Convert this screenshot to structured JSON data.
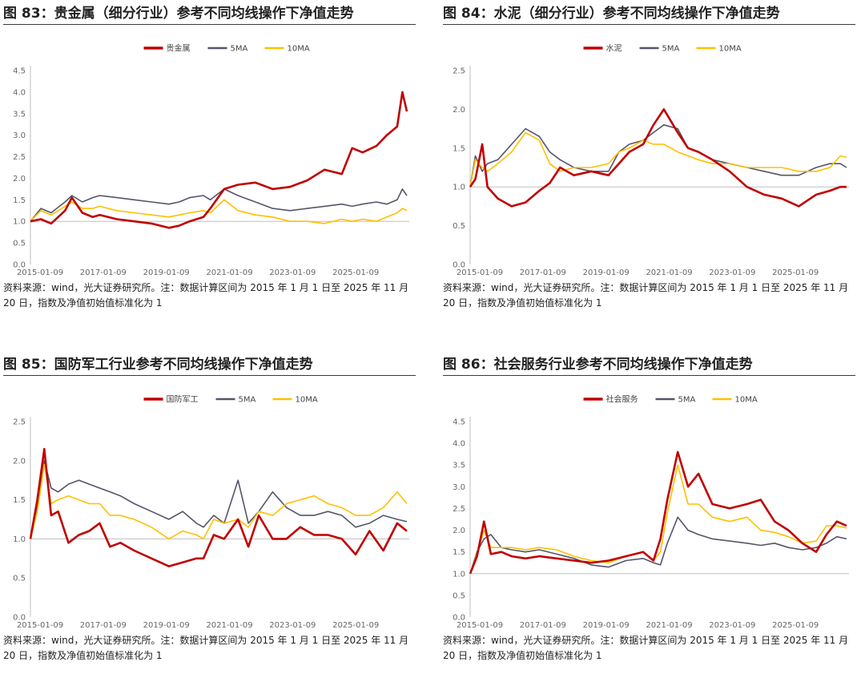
{
  "note": "资料来源：wind，光大证券研究所。注：数据计算区间为 2015 年 1 月 1 日至 2025 年 11 月 20 日，指数及净值初始值标准化为 1",
  "colors": {
    "index": "#c00000",
    "ma5": "#55556b",
    "ma10": "#ffc000"
  },
  "panels": [
    {
      "title": "图 83：贵金属（细分行业）参考不同均线操作下净值走势",
      "chart_data": {
        "type": "line",
        "x_ticks": [
          "2015-01-09",
          "2017-01-09",
          "2019-01-09",
          "2021-01-09",
          "2023-01-09",
          "2025-01-09"
        ],
        "ylim": [
          0,
          4.5
        ],
        "y_ticks": [
          "0.0",
          "0.5",
          "1.0",
          "1.5",
          "2.0",
          "2.5",
          "3.0",
          "3.5",
          "4.0",
          "4.5"
        ],
        "legend": "top-center",
        "x": [
          2015.0,
          2015.3,
          2015.6,
          2016.0,
          2016.2,
          2016.5,
          2016.8,
          2017.0,
          2017.5,
          2018.0,
          2018.5,
          2019.0,
          2019.3,
          2019.6,
          2020.0,
          2020.2,
          2020.6,
          2021.0,
          2021.5,
          2022.0,
          2022.5,
          2023.0,
          2023.5,
          2024.0,
          2024.3,
          2024.6,
          2025.0,
          2025.3,
          2025.6,
          2025.75,
          2025.88
        ],
        "series": [
          {
            "name": "贵金属",
            "values": [
              1.0,
              1.05,
              0.95,
              1.25,
              1.55,
              1.2,
              1.1,
              1.15,
              1.05,
              1.0,
              0.95,
              0.85,
              0.9,
              1.0,
              1.1,
              1.3,
              1.75,
              1.85,
              1.9,
              1.75,
              1.8,
              1.95,
              2.2,
              2.1,
              2.7,
              2.6,
              2.75,
              3.0,
              3.2,
              4.0,
              3.55
            ]
          },
          {
            "name": "5MA",
            "values": [
              1.0,
              1.3,
              1.2,
              1.45,
              1.6,
              1.45,
              1.55,
              1.6,
              1.55,
              1.5,
              1.45,
              1.4,
              1.45,
              1.55,
              1.6,
              1.5,
              1.75,
              1.6,
              1.45,
              1.3,
              1.25,
              1.3,
              1.35,
              1.4,
              1.35,
              1.4,
              1.45,
              1.4,
              1.5,
              1.75,
              1.6
            ]
          },
          {
            "name": "10MA",
            "values": [
              1.0,
              1.25,
              1.15,
              1.35,
              1.45,
              1.3,
              1.3,
              1.35,
              1.25,
              1.2,
              1.15,
              1.1,
              1.15,
              1.2,
              1.25,
              1.2,
              1.5,
              1.25,
              1.15,
              1.1,
              1.0,
              1.0,
              0.95,
              1.05,
              1.0,
              1.05,
              1.0,
              1.1,
              1.2,
              1.3,
              1.25
            ]
          }
        ]
      }
    },
    {
      "title": "图 84：水泥（细分行业）参考不同均线操作下净值走势",
      "chart_data": {
        "type": "line",
        "x_ticks": [
          "2015-01-09",
          "2017-01-09",
          "2019-01-09",
          "2021-01-09",
          "2023-01-09",
          "2025-01-09"
        ],
        "ylim": [
          0,
          2.5
        ],
        "y_ticks": [
          "0.0",
          "0.5",
          "1.0",
          "1.5",
          "2.0",
          "2.5"
        ],
        "legend": "top-center",
        "x": [
          2015.0,
          2015.15,
          2015.35,
          2015.5,
          2015.8,
          2016.2,
          2016.6,
          2017.0,
          2017.3,
          2017.6,
          2018.0,
          2018.5,
          2019.0,
          2019.3,
          2019.6,
          2020.0,
          2020.3,
          2020.6,
          2021.0,
          2021.3,
          2021.6,
          2022.0,
          2022.5,
          2023.0,
          2023.5,
          2024.0,
          2024.5,
          2025.0,
          2025.4,
          2025.7,
          2025.88
        ],
        "series": [
          {
            "name": "水泥",
            "values": [
              1.0,
              1.1,
              1.55,
              1.0,
              0.85,
              0.75,
              0.8,
              0.95,
              1.05,
              1.25,
              1.15,
              1.2,
              1.15,
              1.3,
              1.45,
              1.55,
              1.8,
              2.0,
              1.7,
              1.5,
              1.45,
              1.35,
              1.2,
              1.0,
              0.9,
              0.85,
              0.75,
              0.9,
              0.95,
              1.0,
              1.0
            ]
          },
          {
            "name": "5MA",
            "values": [
              1.0,
              1.4,
              1.2,
              1.3,
              1.35,
              1.55,
              1.75,
              1.65,
              1.45,
              1.35,
              1.25,
              1.2,
              1.2,
              1.45,
              1.55,
              1.6,
              1.7,
              1.8,
              1.75,
              1.5,
              1.45,
              1.35,
              1.3,
              1.25,
              1.2,
              1.15,
              1.15,
              1.25,
              1.3,
              1.3,
              1.25
            ]
          },
          {
            "name": "10MA",
            "values": [
              1.0,
              1.35,
              1.25,
              1.2,
              1.3,
              1.45,
              1.7,
              1.6,
              1.3,
              1.2,
              1.25,
              1.25,
              1.3,
              1.45,
              1.5,
              1.6,
              1.55,
              1.55,
              1.45,
              1.4,
              1.35,
              1.3,
              1.3,
              1.25,
              1.25,
              1.25,
              1.2,
              1.2,
              1.25,
              1.4,
              1.38
            ]
          }
        ]
      }
    },
    {
      "title": "图 85：国防军工行业参考不同均线操作下净值走势",
      "chart_data": {
        "type": "line",
        "x_ticks": [
          "2015-01-09",
          "2017-01-09",
          "2019-01-09",
          "2021-01-09",
          "2023-01-09",
          "2025-01-09"
        ],
        "ylim": [
          0,
          2.5
        ],
        "y_ticks": [
          "0.0",
          "0.5",
          "1.0",
          "1.5",
          "2.0",
          "2.5"
        ],
        "legend": "top-center",
        "x": [
          2015.0,
          2015.2,
          2015.4,
          2015.6,
          2015.8,
          2016.1,
          2016.4,
          2016.7,
          2017.0,
          2017.3,
          2017.6,
          2018.0,
          2018.5,
          2019.0,
          2019.4,
          2019.8,
          2020.0,
          2020.3,
          2020.6,
          2021.0,
          2021.3,
          2021.6,
          2022.0,
          2022.4,
          2022.8,
          2023.2,
          2023.6,
          2024.0,
          2024.4,
          2024.8,
          2025.2,
          2025.6,
          2025.88
        ],
        "series": [
          {
            "name": "国防军工",
            "values": [
              1.0,
              1.5,
              2.15,
              1.3,
              1.35,
              0.95,
              1.05,
              1.1,
              1.2,
              0.9,
              0.95,
              0.85,
              0.75,
              0.65,
              0.7,
              0.75,
              0.75,
              1.05,
              1.0,
              1.25,
              0.9,
              1.3,
              1.0,
              1.0,
              1.15,
              1.05,
              1.05,
              1.0,
              0.8,
              1.1,
              0.85,
              1.2,
              1.1
            ]
          },
          {
            "name": "5MA",
            "values": [
              1.0,
              1.4,
              2.0,
              1.65,
              1.6,
              1.7,
              1.75,
              1.7,
              1.65,
              1.6,
              1.55,
              1.45,
              1.35,
              1.25,
              1.35,
              1.2,
              1.15,
              1.3,
              1.2,
              1.75,
              1.2,
              1.35,
              1.6,
              1.4,
              1.3,
              1.3,
              1.35,
              1.3,
              1.15,
              1.2,
              1.3,
              1.25,
              1.22
            ]
          },
          {
            "name": "10MA",
            "values": [
              1.0,
              1.35,
              1.95,
              1.45,
              1.5,
              1.55,
              1.5,
              1.45,
              1.45,
              1.3,
              1.3,
              1.25,
              1.15,
              1.0,
              1.1,
              1.05,
              1.0,
              1.25,
              1.2,
              1.25,
              1.15,
              1.35,
              1.3,
              1.45,
              1.5,
              1.55,
              1.45,
              1.4,
              1.3,
              1.3,
              1.4,
              1.6,
              1.45
            ]
          }
        ]
      }
    },
    {
      "title": "图 86：社会服务行业参考不同均线操作下净值走势",
      "chart_data": {
        "type": "line",
        "x_ticks": [
          "2015-01-09",
          "2017-01-09",
          "2019-01-09",
          "2021-01-09",
          "2023-01-09",
          "2025-01-09"
        ],
        "ylim": [
          0,
          4.5
        ],
        "y_ticks": [
          "0.0",
          "0.5",
          "1.0",
          "1.5",
          "2.0",
          "2.5",
          "3.0",
          "3.5",
          "4.0",
          "4.5"
        ],
        "legend": "top-center",
        "x": [
          2015.0,
          2015.2,
          2015.4,
          2015.6,
          2015.9,
          2016.2,
          2016.6,
          2017.0,
          2017.5,
          2018.0,
          2018.5,
          2019.0,
          2019.5,
          2020.0,
          2020.3,
          2020.5,
          2020.7,
          2021.0,
          2021.3,
          2021.6,
          2022.0,
          2022.5,
          2023.0,
          2023.4,
          2023.8,
          2024.2,
          2024.6,
          2025.0,
          2025.3,
          2025.6,
          2025.88
        ],
        "series": [
          {
            "name": "社会服务",
            "values": [
              1.0,
              1.4,
              2.2,
              1.45,
              1.5,
              1.4,
              1.35,
              1.4,
              1.35,
              1.3,
              1.25,
              1.3,
              1.4,
              1.5,
              1.3,
              1.8,
              2.7,
              3.8,
              3.0,
              3.3,
              2.6,
              2.5,
              2.6,
              2.7,
              2.2,
              2.0,
              1.7,
              1.5,
              1.9,
              2.2,
              2.1
            ]
          },
          {
            "name": "5MA",
            "values": [
              1.0,
              1.5,
              1.8,
              1.9,
              1.6,
              1.55,
              1.5,
              1.55,
              1.45,
              1.35,
              1.2,
              1.15,
              1.3,
              1.35,
              1.25,
              1.2,
              1.7,
              2.3,
              2.0,
              1.9,
              1.8,
              1.75,
              1.7,
              1.65,
              1.7,
              1.6,
              1.55,
              1.6,
              1.7,
              1.85,
              1.8
            ]
          },
          {
            "name": "10MA",
            "values": [
              1.0,
              1.45,
              2.0,
              1.6,
              1.6,
              1.6,
              1.55,
              1.6,
              1.55,
              1.4,
              1.3,
              1.25,
              1.4,
              1.5,
              1.3,
              1.5,
              2.4,
              3.5,
              2.6,
              2.6,
              2.3,
              2.2,
              2.3,
              2.0,
              1.95,
              1.85,
              1.7,
              1.75,
              2.1,
              2.1,
              2.05
            ]
          }
        ]
      }
    }
  ]
}
